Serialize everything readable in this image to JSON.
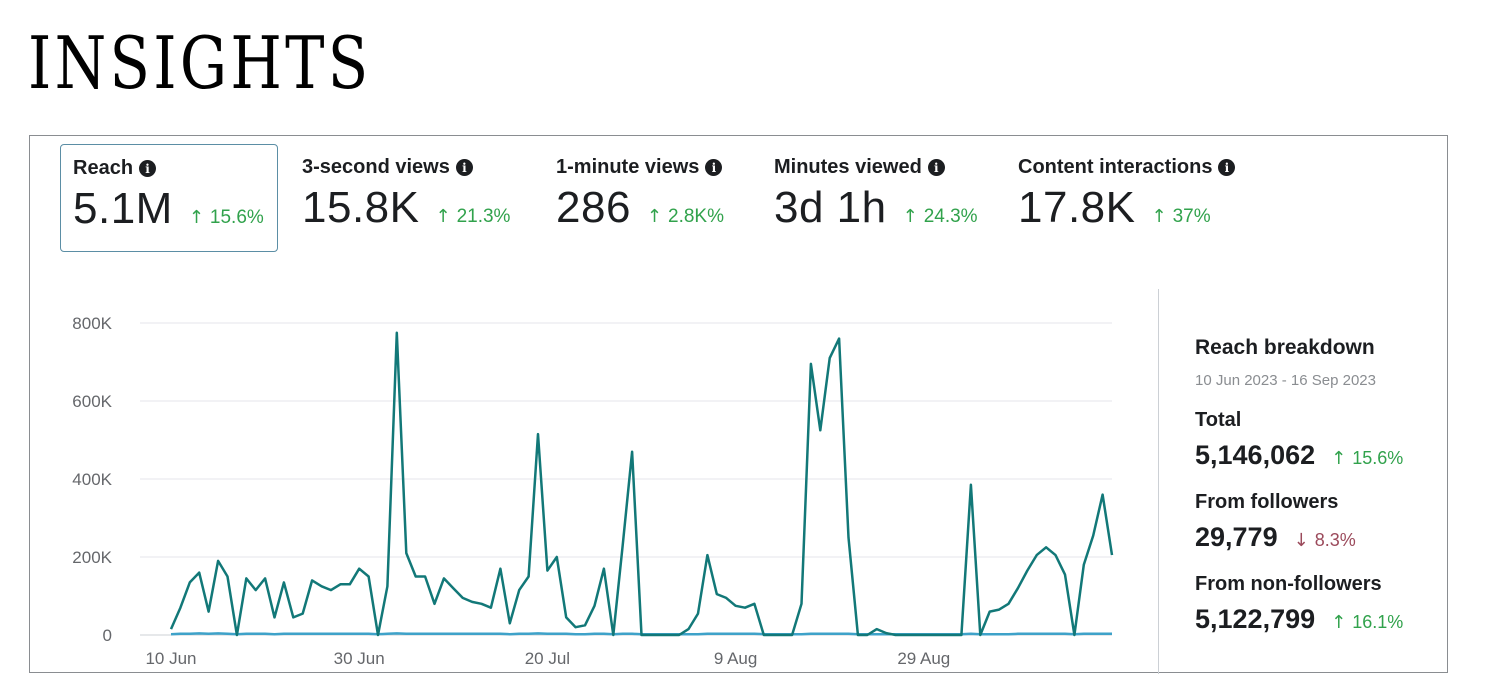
{
  "page": {
    "title": "INSIGHTS"
  },
  "metrics": [
    {
      "label": "Reach",
      "value": "5.1M",
      "change": "15.6%",
      "direction": "up",
      "selected": true
    },
    {
      "label": "3-second views",
      "value": "15.8K",
      "change": "21.3%",
      "direction": "up",
      "selected": false
    },
    {
      "label": "1-minute views",
      "value": "286",
      "change": "2.8K%",
      "direction": "up",
      "selected": false
    },
    {
      "label": "Minutes viewed",
      "value": "3d 1h",
      "change": "24.3%",
      "direction": "up",
      "selected": false
    },
    {
      "label": "Content interactions",
      "value": "17.8K",
      "change": "37%",
      "direction": "up",
      "selected": false
    }
  ],
  "breakdown": {
    "title": "Reach breakdown",
    "date_range": "10 Jun 2023 - 16 Sep 2023",
    "items": [
      {
        "label": "Total",
        "value": "5,146,062",
        "change": "15.6%",
        "direction": "up"
      },
      {
        "label": "From followers",
        "value": "29,779",
        "change": "8.3%",
        "direction": "down"
      },
      {
        "label": "From non-followers",
        "value": "5,122,799",
        "change": "16.1%",
        "direction": "up"
      }
    ]
  },
  "colors": {
    "primary_line": "#127878",
    "secondary_line": "#3ea2c9",
    "up": "#31a24c",
    "down": "#9b4a5b",
    "grid": "#e4e6eb"
  },
  "icons": {
    "info": "info-icon",
    "up": "arrow-up-icon",
    "down": "arrow-down-icon"
  },
  "chart_data": {
    "type": "line",
    "x_ticks": [
      "10 Jun",
      "30 Jun",
      "20 Jul",
      "9 Aug",
      "29 Aug"
    ],
    "y_ticks": [
      "0",
      "200K",
      "400K",
      "600K",
      "800K"
    ],
    "ylim": [
      0,
      800000
    ],
    "grid": true,
    "x_start": "2023-06-10",
    "series": [
      {
        "values": [
          15000,
          70000,
          135000,
          160000,
          60000,
          190000,
          150000,
          0,
          145000,
          115000,
          145000,
          45000,
          135000,
          45000,
          55000,
          140000,
          125000,
          115000,
          130000,
          130000,
          170000,
          150000,
          0,
          125000,
          775000,
          210000,
          150000,
          150000,
          80000,
          145000,
          120000,
          95000,
          85000,
          80000,
          70000,
          170000,
          30000,
          115000,
          150000,
          515000,
          165000,
          200000,
          45000,
          20000,
          25000,
          75000,
          170000,
          0,
          230000,
          470000,
          0,
          0,
          0,
          0,
          0,
          15000,
          55000,
          205000,
          105000,
          95000,
          75000,
          70000,
          80000,
          0,
          0,
          0,
          0,
          80000,
          695000,
          525000,
          710000,
          760000,
          250000,
          0,
          0,
          15000,
          5000,
          0,
          0,
          0,
          0,
          0,
          0,
          0,
          0,
          385000,
          0,
          60000,
          65000,
          80000,
          120000,
          165000,
          205000,
          225000,
          205000,
          155000,
          0,
          180000,
          255000,
          360000,
          205000
        ]
      },
      {
        "values": [
          2000,
          3000,
          3000,
          4000,
          3000,
          4000,
          3000,
          2000,
          3000,
          3000,
          3000,
          2000,
          3000,
          3000,
          3000,
          3000,
          3000,
          3000,
          3000,
          3000,
          3000,
          3000,
          2000,
          3000,
          4000,
          3000,
          3000,
          3000,
          3000,
          3000,
          3000,
          3000,
          3000,
          3000,
          3000,
          3000,
          2000,
          3000,
          3000,
          4000,
          3000,
          3000,
          3000,
          2000,
          2000,
          3000,
          3000,
          2000,
          3000,
          3000,
          2000,
          2000,
          2000,
          2000,
          2000,
          2000,
          2000,
          3000,
          3000,
          3000,
          3000,
          3000,
          3000,
          2000,
          2000,
          2000,
          2000,
          2000,
          3000,
          3000,
          3000,
          3000,
          3000,
          2000,
          2000,
          2000,
          2000,
          2000,
          2000,
          2000,
          2000,
          2000,
          2000,
          2000,
          2000,
          3000,
          2000,
          2000,
          2000,
          2000,
          3000,
          3000,
          3000,
          3000,
          3000,
          3000,
          2000,
          3000,
          3000,
          3000,
          3000
        ]
      }
    ]
  }
}
